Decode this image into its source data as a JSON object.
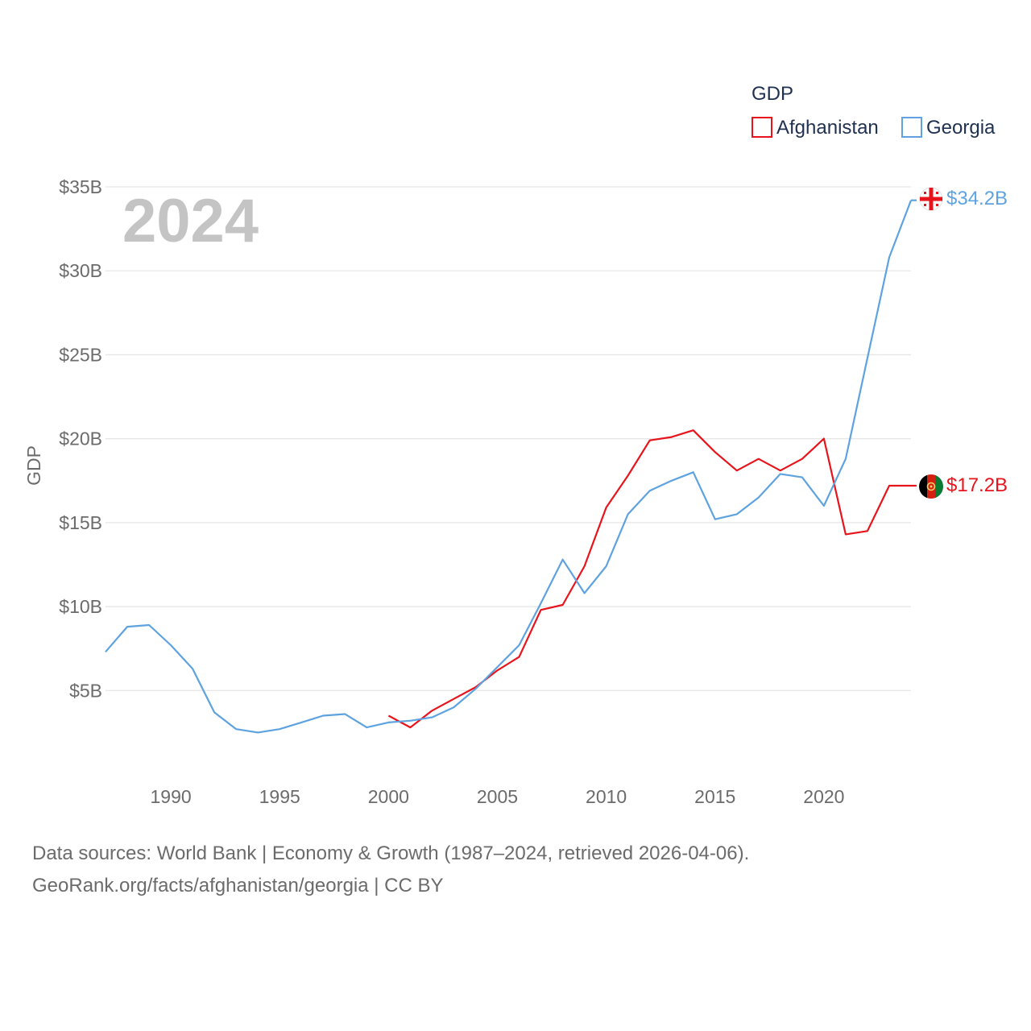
{
  "chart_data": {
    "type": "line",
    "year_watermark": "2024",
    "ylabel": "GDP",
    "ylim": [
      0,
      35
    ],
    "xlim": [
      1987,
      2024
    ],
    "y_ticks": [
      {
        "value": 5,
        "label": "$5B"
      },
      {
        "value": 10,
        "label": "$10B"
      },
      {
        "value": 15,
        "label": "$15B"
      },
      {
        "value": 20,
        "label": "$20B"
      },
      {
        "value": 25,
        "label": "$25B"
      },
      {
        "value": 30,
        "label": "$30B"
      },
      {
        "value": 35,
        "label": "$35B"
      }
    ],
    "x_ticks": [
      {
        "value": 1990,
        "label": "1990"
      },
      {
        "value": 1995,
        "label": "1995"
      },
      {
        "value": 2000,
        "label": "2000"
      },
      {
        "value": 2005,
        "label": "2005"
      },
      {
        "value": 2010,
        "label": "2010"
      },
      {
        "value": 2015,
        "label": "2015"
      },
      {
        "value": 2020,
        "label": "2020"
      }
    ],
    "legend": {
      "title": "GDP",
      "placement": "top-right"
    },
    "series": [
      {
        "name": "Afghanistan",
        "color": "#e8141c",
        "end_label": "$17.2B",
        "flag_icon": "afghanistan-flag-icon",
        "x": [
          2000,
          2001,
          2002,
          2003,
          2004,
          2005,
          2006,
          2007,
          2008,
          2009,
          2010,
          2011,
          2012,
          2013,
          2014,
          2015,
          2016,
          2017,
          2018,
          2019,
          2020,
          2021,
          2022,
          2023,
          2024
        ],
        "values": [
          3.5,
          2.8,
          3.8,
          4.5,
          5.2,
          6.2,
          7.0,
          9.8,
          10.1,
          12.4,
          15.9,
          17.8,
          19.9,
          20.1,
          20.5,
          19.2,
          18.1,
          18.8,
          18.1,
          18.8,
          20.0,
          14.3,
          14.5,
          17.2,
          17.2
        ]
      },
      {
        "name": "Georgia",
        "color": "#5ea3e0",
        "end_label": "$34.2B",
        "flag_icon": "georgia-flag-icon",
        "x": [
          1987,
          1988,
          1989,
          1990,
          1991,
          1992,
          1993,
          1994,
          1995,
          1996,
          1997,
          1998,
          1999,
          2000,
          2001,
          2002,
          2003,
          2004,
          2005,
          2006,
          2007,
          2008,
          2009,
          2010,
          2011,
          2012,
          2013,
          2014,
          2015,
          2016,
          2017,
          2018,
          2019,
          2020,
          2021,
          2022,
          2023,
          2024
        ],
        "values": [
          7.3,
          8.8,
          8.9,
          7.7,
          6.3,
          3.7,
          2.7,
          2.5,
          2.7,
          3.1,
          3.5,
          3.6,
          2.8,
          3.1,
          3.2,
          3.4,
          4.0,
          5.1,
          6.4,
          7.7,
          10.2,
          12.8,
          10.8,
          12.4,
          15.5,
          16.9,
          17.5,
          18.0,
          15.2,
          15.5,
          16.5,
          17.9,
          17.7,
          16.0,
          18.8,
          24.8,
          30.8,
          34.2
        ]
      }
    ]
  },
  "footer": {
    "line1": "Data sources: World Bank | Economy & Growth (1987–2024, retrieved 2026-04-06).",
    "line2": "GeoRank.org/facts/afghanistan/georgia | CC BY"
  }
}
